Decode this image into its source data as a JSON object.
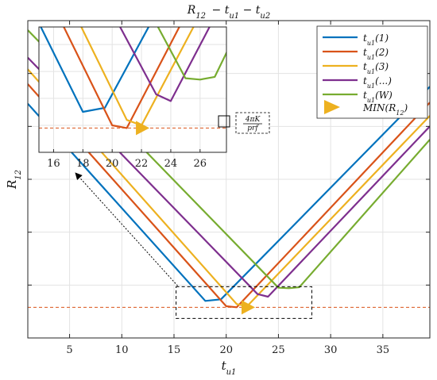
{
  "chart_data": {
    "type": "line",
    "title": "R_{12} − t_{u1} − t_{u2}",
    "title_parts": {
      "R": "R",
      "R_sub": "12",
      "t1": "t",
      "t1_sub": "u1",
      "t2": "t",
      "t2_sub": "u2"
    },
    "xlabel": {
      "base": "t",
      "sub": "u1"
    },
    "ylabel": {
      "base": "R",
      "sub": "12"
    },
    "xlim": [
      1,
      39.5
    ],
    "ylim": [
      0,
      6
    ],
    "x_ticks": [
      5,
      10,
      15,
      20,
      25,
      30,
      35
    ],
    "y_ticks": [
      1,
      2,
      3,
      4,
      5
    ],
    "y_tick_labels_shown": false,
    "grid": true,
    "legend_position": "top-right",
    "series": [
      {
        "name": "t_{u1}(1)",
        "name_base": "t",
        "name_sub": "u1",
        "name_arg": "(1)",
        "color": "#0072BD",
        "points": [
          [
            1,
            4.43
          ],
          [
            18,
            0.7
          ],
          [
            19.5,
            0.73
          ],
          [
            39.5,
            4.75
          ]
        ]
      },
      {
        "name": "t_{u1}(2)",
        "name_base": "t",
        "name_sub": "u1",
        "name_arg": "(2)",
        "color": "#D95319",
        "points": [
          [
            1,
            4.8
          ],
          [
            20,
            0.6
          ],
          [
            21,
            0.58
          ],
          [
            39.5,
            4.45
          ]
        ]
      },
      {
        "name": "t_{u1}(3)",
        "name_base": "t",
        "name_sub": "u1",
        "name_arg": "(3)",
        "color": "#EDB120",
        "points": [
          [
            1,
            5.08
          ],
          [
            21,
            0.64
          ],
          [
            22,
            0.6
          ],
          [
            39.5,
            4.2
          ]
        ]
      },
      {
        "name": "t_{u1}(...)",
        "name_base": "t",
        "name_sub": "u1",
        "name_arg": "(...)",
        "color": "#7E2F8E",
        "points": [
          [
            1,
            5.3
          ],
          [
            23,
            0.83
          ],
          [
            24,
            0.78
          ],
          [
            39.5,
            4.0
          ]
        ]
      },
      {
        "name": "t_{u1}(W)",
        "name_base": "t",
        "name_sub": "u1",
        "name_arg": "(W)",
        "color": "#77AC30",
        "points": [
          [
            1,
            5.82
          ],
          [
            25,
            0.95
          ],
          [
            26,
            0.94
          ],
          [
            27,
            0.96
          ],
          [
            39.5,
            3.75
          ]
        ]
      }
    ],
    "min_marker": {
      "label": "MIN(R_{12})",
      "label_base": "MIN(R",
      "label_sub": "12",
      "label_close": ")",
      "x": 22,
      "y": 0.58,
      "color": "#EDB120"
    },
    "reference_line": {
      "y": 0.58,
      "color": "#D95319",
      "style": "dashed"
    },
    "zoom_region": {
      "x": [
        15.2,
        28.2
      ],
      "y": [
        0.37,
        0.97
      ]
    },
    "inset": {
      "x_ticks": [
        16,
        18,
        20,
        22,
        24,
        26
      ],
      "xlim": [
        15,
        27.8
      ],
      "ylim": [
        0.4,
        1.33
      ],
      "annotation": {
        "numerator": "4πK",
        "denominator": "prf"
      }
    }
  }
}
